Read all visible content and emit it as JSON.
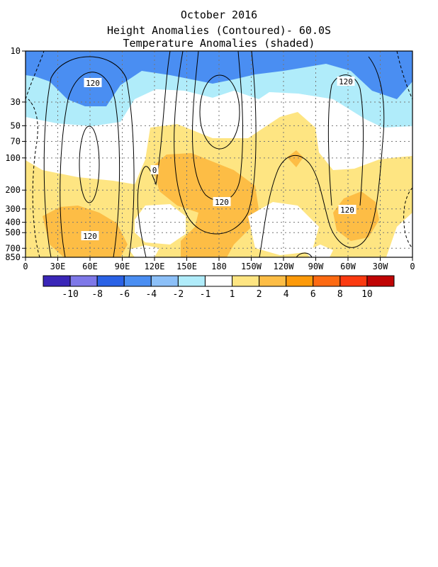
{
  "chart_data": {
    "type": "heatmap",
    "title": "October 2016",
    "subtitle_lines": [
      "Height Anomalies (Contoured)- 60.0S",
      "Temperature Anomalies (shaded)"
    ],
    "xlabel": "",
    "ylabel": "",
    "x_ticks": [
      "0",
      "30E",
      "60E",
      "90E",
      "120E",
      "150E",
      "180",
      "150W",
      "120W",
      "90W",
      "60W",
      "30W",
      "0"
    ],
    "x_range_deg_east": [
      0,
      360
    ],
    "y_ticks": [
      "10",
      "30",
      "50",
      "70",
      "100",
      "200",
      "300",
      "400",
      "500",
      "700",
      "850"
    ],
    "y_scale": "log",
    "y_range_hpa": [
      850,
      10
    ],
    "grid": true,
    "colorbar": {
      "orientation": "horizontal",
      "placement": "bottom",
      "labels": [
        "-10",
        "-8",
        "-6",
        "-4",
        "-2",
        "-1",
        "1",
        "2",
        "4",
        "6",
        "8",
        "10"
      ],
      "colors": [
        "#3a26b8",
        "#7e78e8",
        "#2a62e6",
        "#4a8ef2",
        "#8cc0f8",
        "#b0ecfa",
        "#ffffff",
        "#fee582",
        "#fdbd45",
        "#fd9a0a",
        "#fd6a12",
        "#fb3a10",
        "#c00404"
      ]
    },
    "contour_labels": [
      "120",
      "120",
      "0",
      "120",
      "120",
      "120"
    ],
    "shaded_regions": [
      {
        "level": "-4 to -2",
        "color": "#4a8ef2",
        "where": "upper stratosphere 10-30 hPa, 10E-150E and 290E-360E"
      },
      {
        "level": "-2 to -1",
        "color": "#8cc0f8",
        "where": "10-70 hPa broad band across most longitudes"
      },
      {
        "level": "1 to 2",
        "color": "#fee582",
        "where": "70-850 hPa broad areas 0-360E"
      },
      {
        "level": "2 to 4",
        "color": "#fdbd45",
        "where": "troposphere near 60E, 150E-210E, 250E, 300E"
      }
    ]
  }
}
